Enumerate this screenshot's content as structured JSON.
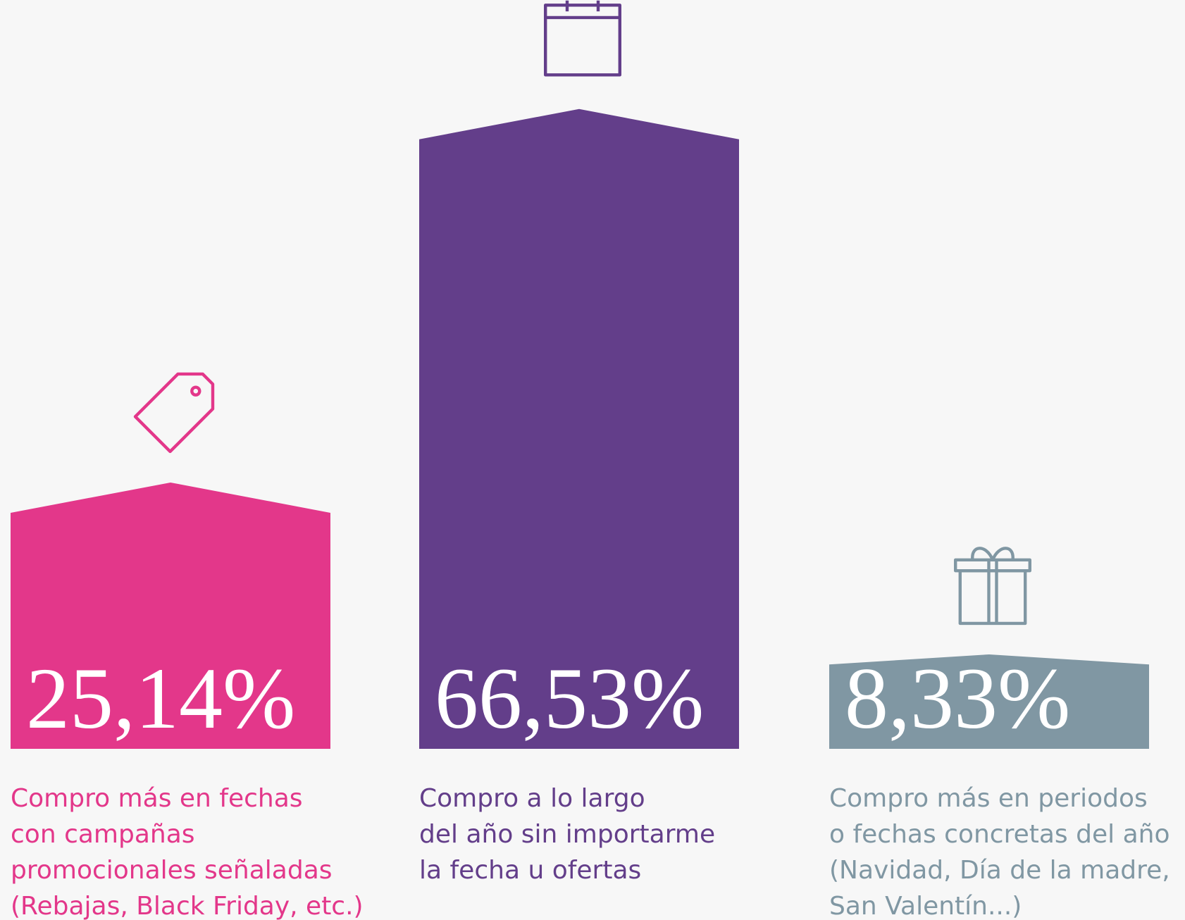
{
  "chart_data": {
    "type": "bar",
    "categories": [
      "Compro más en fechas\ncon campañas\npromocionales señaladas\n(Rebajas, Black Friday, etc.)",
      "Compro a lo largo\ndel año sin importarme\nla fecha u ofertas",
      "Compro más en periodos\no fechas concretas del año\n(Navidad, Día de la madre,\nSan Valentín...)"
    ],
    "values": [
      25.14,
      66.53,
      8.33
    ],
    "value_labels": [
      "25,14%",
      "66,53%",
      "8,33%"
    ],
    "colors": [
      "#e3378a",
      "#633e8a",
      "#8097a3"
    ]
  }
}
